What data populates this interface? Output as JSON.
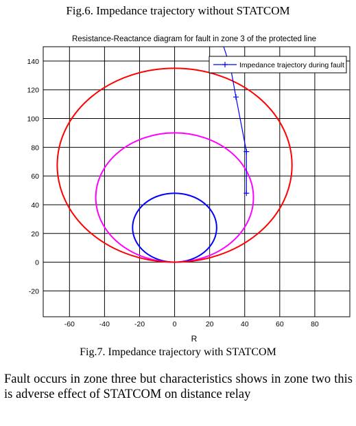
{
  "fig6_caption": "Fig.6. Impedance trajectory without STATCOM",
  "fig7_caption": "Fig.7. Impedance trajectory with STATCOM",
  "body_text": "Fault occurs in zone three but characteristics shows in zone two this is adverse effect of STATCOM on distance relay",
  "chart_data": {
    "type": "line",
    "title": "Resistance-Reactance diagram for fault in zone 3 of the protected line",
    "xlabel": "R",
    "ylabel": "",
    "xlim": [
      -75,
      100
    ],
    "ylim": [
      -38,
      150
    ],
    "xticks": [
      -60,
      -40,
      -20,
      0,
      20,
      40,
      60,
      80
    ],
    "yticks": [
      -20,
      0,
      20,
      40,
      60,
      80,
      100,
      120,
      140
    ],
    "grid": true,
    "legend_position": "top-right",
    "zones": [
      {
        "shape": "mho-circle",
        "color": "#0000ff",
        "center_r": 0,
        "center_x": 24,
        "radius_r": 24,
        "radius_x": 24
      },
      {
        "shape": "mho-circle",
        "color": "#ff00ff",
        "center_r": 0,
        "center_x": 45,
        "radius_r": 45,
        "radius_x": 45
      },
      {
        "shape": "mho-circle",
        "color": "#ff0000",
        "center_r": 0,
        "center_x": 67.5,
        "radius_r": 67,
        "radius_x": 67.5
      }
    ],
    "series": [
      {
        "name": "Impedance trajectory during fault",
        "color": "#0000ff",
        "marker": "+",
        "x": [
          41,
          41,
          35,
          32,
          28
        ],
        "y": [
          48,
          77,
          115,
          135,
          150
        ],
        "markers_at": [
          0,
          1,
          2
        ]
      }
    ]
  }
}
